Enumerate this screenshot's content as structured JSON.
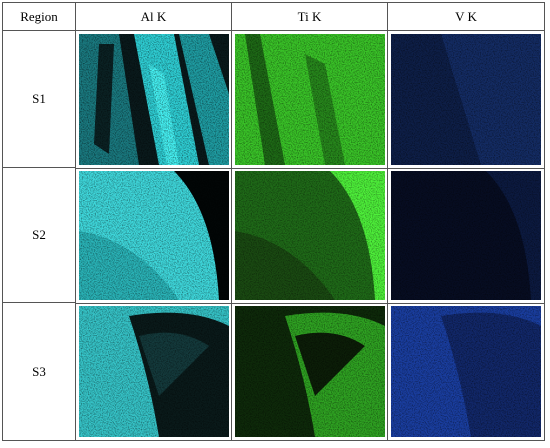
{
  "table": {
    "header": [
      "Region",
      "Al K",
      "Ti K",
      "V K"
    ],
    "rows": [
      "S1",
      "S2",
      "S3"
    ]
  }
}
